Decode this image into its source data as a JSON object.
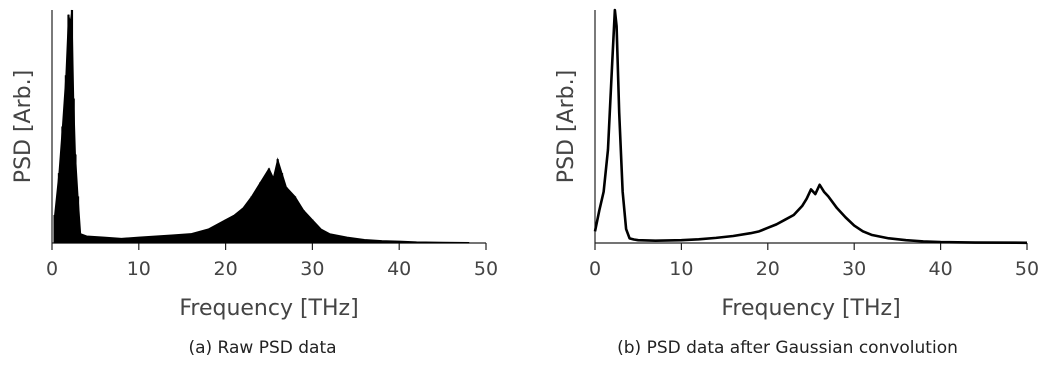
{
  "chart_data": [
    {
      "type": "bar",
      "panel": "a",
      "caption": "(a) Raw PSD data",
      "xlabel": "Frequency [THz]",
      "ylabel": "PSD [Arb.]",
      "xlim": [
        0,
        50
      ],
      "ylim": [
        0,
        1
      ],
      "xticks": [
        "0",
        "10",
        "20",
        "30",
        "40",
        "50"
      ],
      "grid": false,
      "series": [
        {
          "x": [
            0.3,
            0.8,
            1.2,
            1.6,
            1.9,
            2.1,
            2.3,
            2.5,
            2.7,
            3.0,
            3.3,
            4,
            6,
            8,
            10,
            12,
            14,
            16,
            18,
            20,
            21,
            22,
            23,
            24,
            25,
            25.5,
            26,
            26.5,
            27,
            28,
            29,
            30,
            31,
            32,
            34,
            36,
            38,
            40,
            42,
            45,
            48
          ],
          "y": [
            0.12,
            0.3,
            0.5,
            0.72,
            0.98,
            0.95,
            1.0,
            0.62,
            0.38,
            0.2,
            0.04,
            0.03,
            0.025,
            0.02,
            0.025,
            0.03,
            0.035,
            0.04,
            0.06,
            0.1,
            0.12,
            0.15,
            0.2,
            0.26,
            0.32,
            0.28,
            0.36,
            0.3,
            0.24,
            0.2,
            0.14,
            0.1,
            0.06,
            0.04,
            0.025,
            0.015,
            0.01,
            0.008,
            0.005,
            0.003,
            0.002
          ]
        }
      ]
    },
    {
      "type": "line",
      "panel": "b",
      "caption": "(b) PSD data after Gaussian convolution",
      "xlabel": "Frequency [THz]",
      "ylabel": "PSD [Arb.]",
      "xlim": [
        0,
        50
      ],
      "ylim": [
        0,
        1
      ],
      "xticks": [
        "0",
        "10",
        "20",
        "30",
        "40",
        "50"
      ],
      "grid": false,
      "series": [
        {
          "x": [
            0,
            0.5,
            1.0,
            1.5,
            2.0,
            2.3,
            2.5,
            2.8,
            3.2,
            3.6,
            4.0,
            4.5,
            5,
            7,
            10,
            12,
            14,
            16,
            18,
            19,
            20,
            21,
            22,
            23,
            24,
            24.5,
            25,
            25.5,
            26,
            26.5,
            27,
            28,
            29,
            30,
            31,
            32,
            34,
            36,
            38,
            40,
            44,
            50
          ],
          "y": [
            0.05,
            0.14,
            0.22,
            0.4,
            0.78,
            1.0,
            0.93,
            0.56,
            0.22,
            0.06,
            0.02,
            0.015,
            0.012,
            0.01,
            0.012,
            0.016,
            0.022,
            0.03,
            0.042,
            0.05,
            0.065,
            0.08,
            0.1,
            0.12,
            0.16,
            0.19,
            0.23,
            0.21,
            0.25,
            0.22,
            0.2,
            0.15,
            0.11,
            0.075,
            0.05,
            0.035,
            0.02,
            0.012,
            0.007,
            0.004,
            0.002,
            0.001
          ]
        }
      ]
    }
  ]
}
